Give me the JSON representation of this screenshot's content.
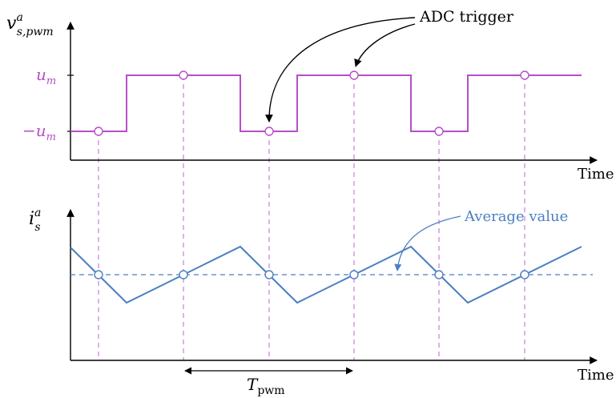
{
  "top_plot": {
    "ylabel_main": "v",
    "ylabel_sup": "a",
    "ylabel_sub": "s,pwm",
    "level_high_label": "u",
    "level_high_sub": "m",
    "level_low_label": "−u",
    "level_low_sub": "m",
    "xlabel": "Time",
    "levels": [
      -1,
      1,
      1,
      -1,
      1,
      1,
      -1,
      1
    ],
    "level_sequence": [
      -1,
      1,
      -1,
      1,
      -1,
      1
    ]
  },
  "bottom_plot": {
    "ylabel_main": "i",
    "ylabel_sup": "a",
    "ylabel_sub": "s",
    "xlabel": "Time",
    "average_label": "Average value"
  },
  "annotations": {
    "adc_trigger": "ADC trigger",
    "period_main": "T",
    "period_sub": "pwm"
  },
  "colors": {
    "pwm": "#b64fc8",
    "current": "#4b7fc1",
    "guide": "#c77fd6",
    "axis": "#000000"
  }
}
